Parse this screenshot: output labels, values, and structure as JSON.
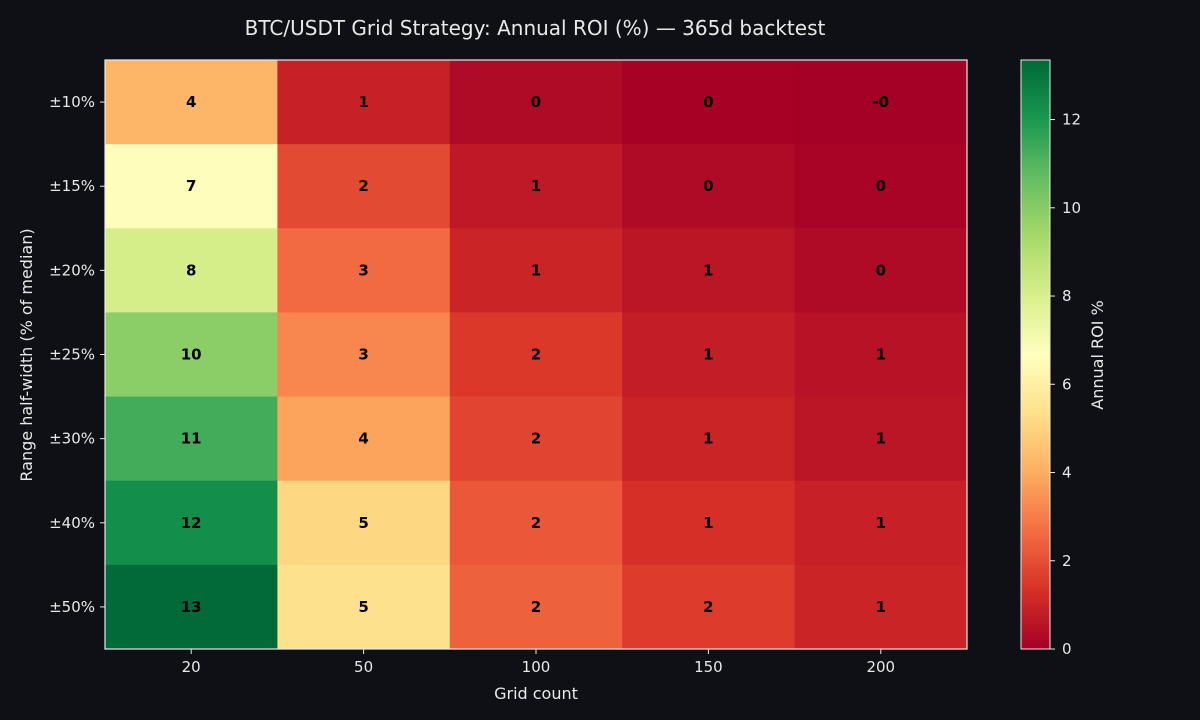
{
  "chart_data": {
    "type": "heatmap",
    "title": "BTC/USDT Grid Strategy: Annual ROI (%) — 365d backtest",
    "xlabel": "Grid count",
    "ylabel": "Range half-width (% of median)",
    "x_categories": [
      "20",
      "50",
      "100",
      "150",
      "200"
    ],
    "y_categories": [
      "±10%",
      "±15%",
      "±20%",
      "±25%",
      "±30%",
      "±40%",
      "±50%"
    ],
    "values": [
      [
        4.2,
        0.9,
        0.3,
        0.05,
        -0.02
      ],
      [
        6.6,
        1.9,
        0.7,
        0.3,
        0.1
      ],
      [
        8.1,
        2.6,
        1.0,
        0.6,
        0.3
      ],
      [
        9.9,
        3.2,
        1.5,
        0.8,
        0.5
      ],
      [
        11.3,
        3.8,
        1.8,
        1.0,
        0.6
      ],
      [
        12.3,
        5.1,
        2.2,
        1.3,
        0.9
      ],
      [
        13.3,
        5.4,
        2.4,
        1.6,
        1.0
      ]
    ],
    "cell_labels": [
      [
        "4",
        "1",
        "0",
        "0",
        "-0"
      ],
      [
        "7",
        "2",
        "1",
        "0",
        "0"
      ],
      [
        "8",
        "3",
        "1",
        "1",
        "0"
      ],
      [
        "10",
        "3",
        "2",
        "1",
        "1"
      ],
      [
        "11",
        "4",
        "2",
        "1",
        "1"
      ],
      [
        "12",
        "5",
        "2",
        "1",
        "1"
      ],
      [
        "13",
        "5",
        "2",
        "2",
        "1"
      ]
    ],
    "colorbar": {
      "label": "Annual ROI %",
      "colormap": "RdYlGn",
      "range": [
        0,
        13.35
      ],
      "ticks": [
        "0",
        "2",
        "4",
        "6",
        "8",
        "10",
        "12"
      ]
    }
  }
}
